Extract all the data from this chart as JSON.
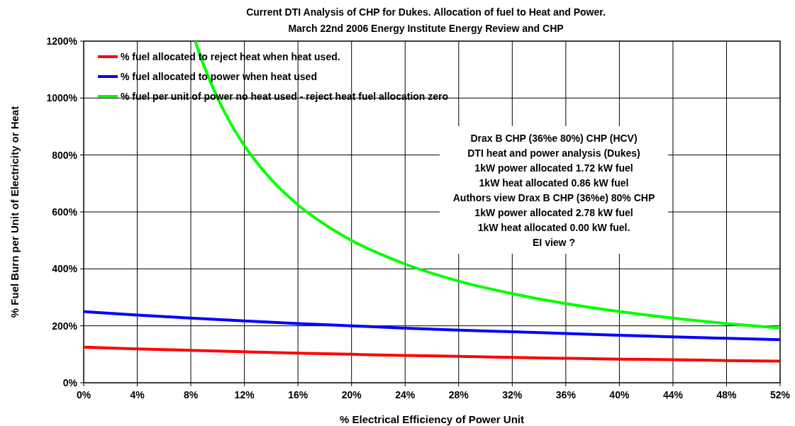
{
  "chart_data": {
    "type": "line",
    "title": "Current DTI Analysis of CHP for Dukes. Allocation of fuel to Heat and Power.",
    "subtitle": "March 22nd 2006 Energy Institute Energy Review and CHP",
    "xlabel": "% Electrical  Efficiency of Power Unit",
    "ylabel": "% Fuel Burn per Unit of Electricity or Heat",
    "x": [
      0,
      4,
      8,
      12,
      16,
      20,
      24,
      28,
      32,
      36,
      40,
      44,
      48,
      52
    ],
    "series": [
      {
        "name": "% fuel allocated to reject heat when heat used.",
        "color": "#ff0000",
        "values": [
          125,
          119,
          114,
          109,
          104,
          100,
          96,
          93,
          89,
          86,
          83,
          81,
          78,
          76
        ]
      },
      {
        "name": "% fuel allocated to power when heat used",
        "color": "#0000ff",
        "values": [
          250,
          238,
          227,
          217,
          208,
          200,
          192,
          185,
          179,
          173,
          167,
          161,
          156,
          151
        ]
      },
      {
        "name": "% fuel per unit of power no heat used - reject heat fuel allocation zero",
        "color": "#00ff00",
        "x": [
          8.33,
          9,
          10,
          11,
          12,
          14,
          16,
          18,
          20,
          24,
          28,
          32,
          36,
          40,
          44,
          48,
          52
        ],
        "values": [
          1200,
          1111,
          1000,
          909,
          833,
          714,
          625,
          556,
          500,
          417,
          357,
          313,
          278,
          250,
          227,
          208,
          192
        ]
      }
    ],
    "xlim": [
      0,
      52
    ],
    "xticks": [
      {
        "value": 0,
        "label": "0%"
      },
      {
        "value": 4,
        "label": "4%"
      },
      {
        "value": 8,
        "label": "8%"
      },
      {
        "value": 12,
        "label": "12%"
      },
      {
        "value": 16,
        "label": "16%"
      },
      {
        "value": 20,
        "label": "20%"
      },
      {
        "value": 24,
        "label": "24%"
      },
      {
        "value": 28,
        "label": "28%"
      },
      {
        "value": 32,
        "label": "32%"
      },
      {
        "value": 36,
        "label": "36%"
      },
      {
        "value": 40,
        "label": "40%"
      },
      {
        "value": 44,
        "label": "44%"
      },
      {
        "value": 48,
        "label": "48%"
      },
      {
        "value": 52,
        "label": "52%"
      }
    ],
    "ylim": [
      0,
      1200
    ],
    "yticks": [
      {
        "value": 0,
        "label": "0%"
      },
      {
        "value": 200,
        "label": "200%"
      },
      {
        "value": 400,
        "label": "400%"
      },
      {
        "value": 600,
        "label": "600%"
      },
      {
        "value": 800,
        "label": "800%"
      },
      {
        "value": 1000,
        "label": "1000%"
      },
      {
        "value": 1200,
        "label": "1200%"
      }
    ],
    "grid": true,
    "legend": "top left",
    "marker": "none",
    "line_style": "solid",
    "annotations": [
      "Drax B CHP (36%e 80%) CHP (HCV)",
      "DTI heat and power analysis (Dukes)",
      "1kW power allocated 1.72 kW fuel",
      "1kW heat allocated 0.86 kW fuel",
      "Authors view Drax B CHP (36%e) 80% CHP",
      "1kW power allocated 2.78 kW fuel",
      "1kW heat  allocated 0.00 kW fuel.",
      "EI view ?"
    ]
  }
}
